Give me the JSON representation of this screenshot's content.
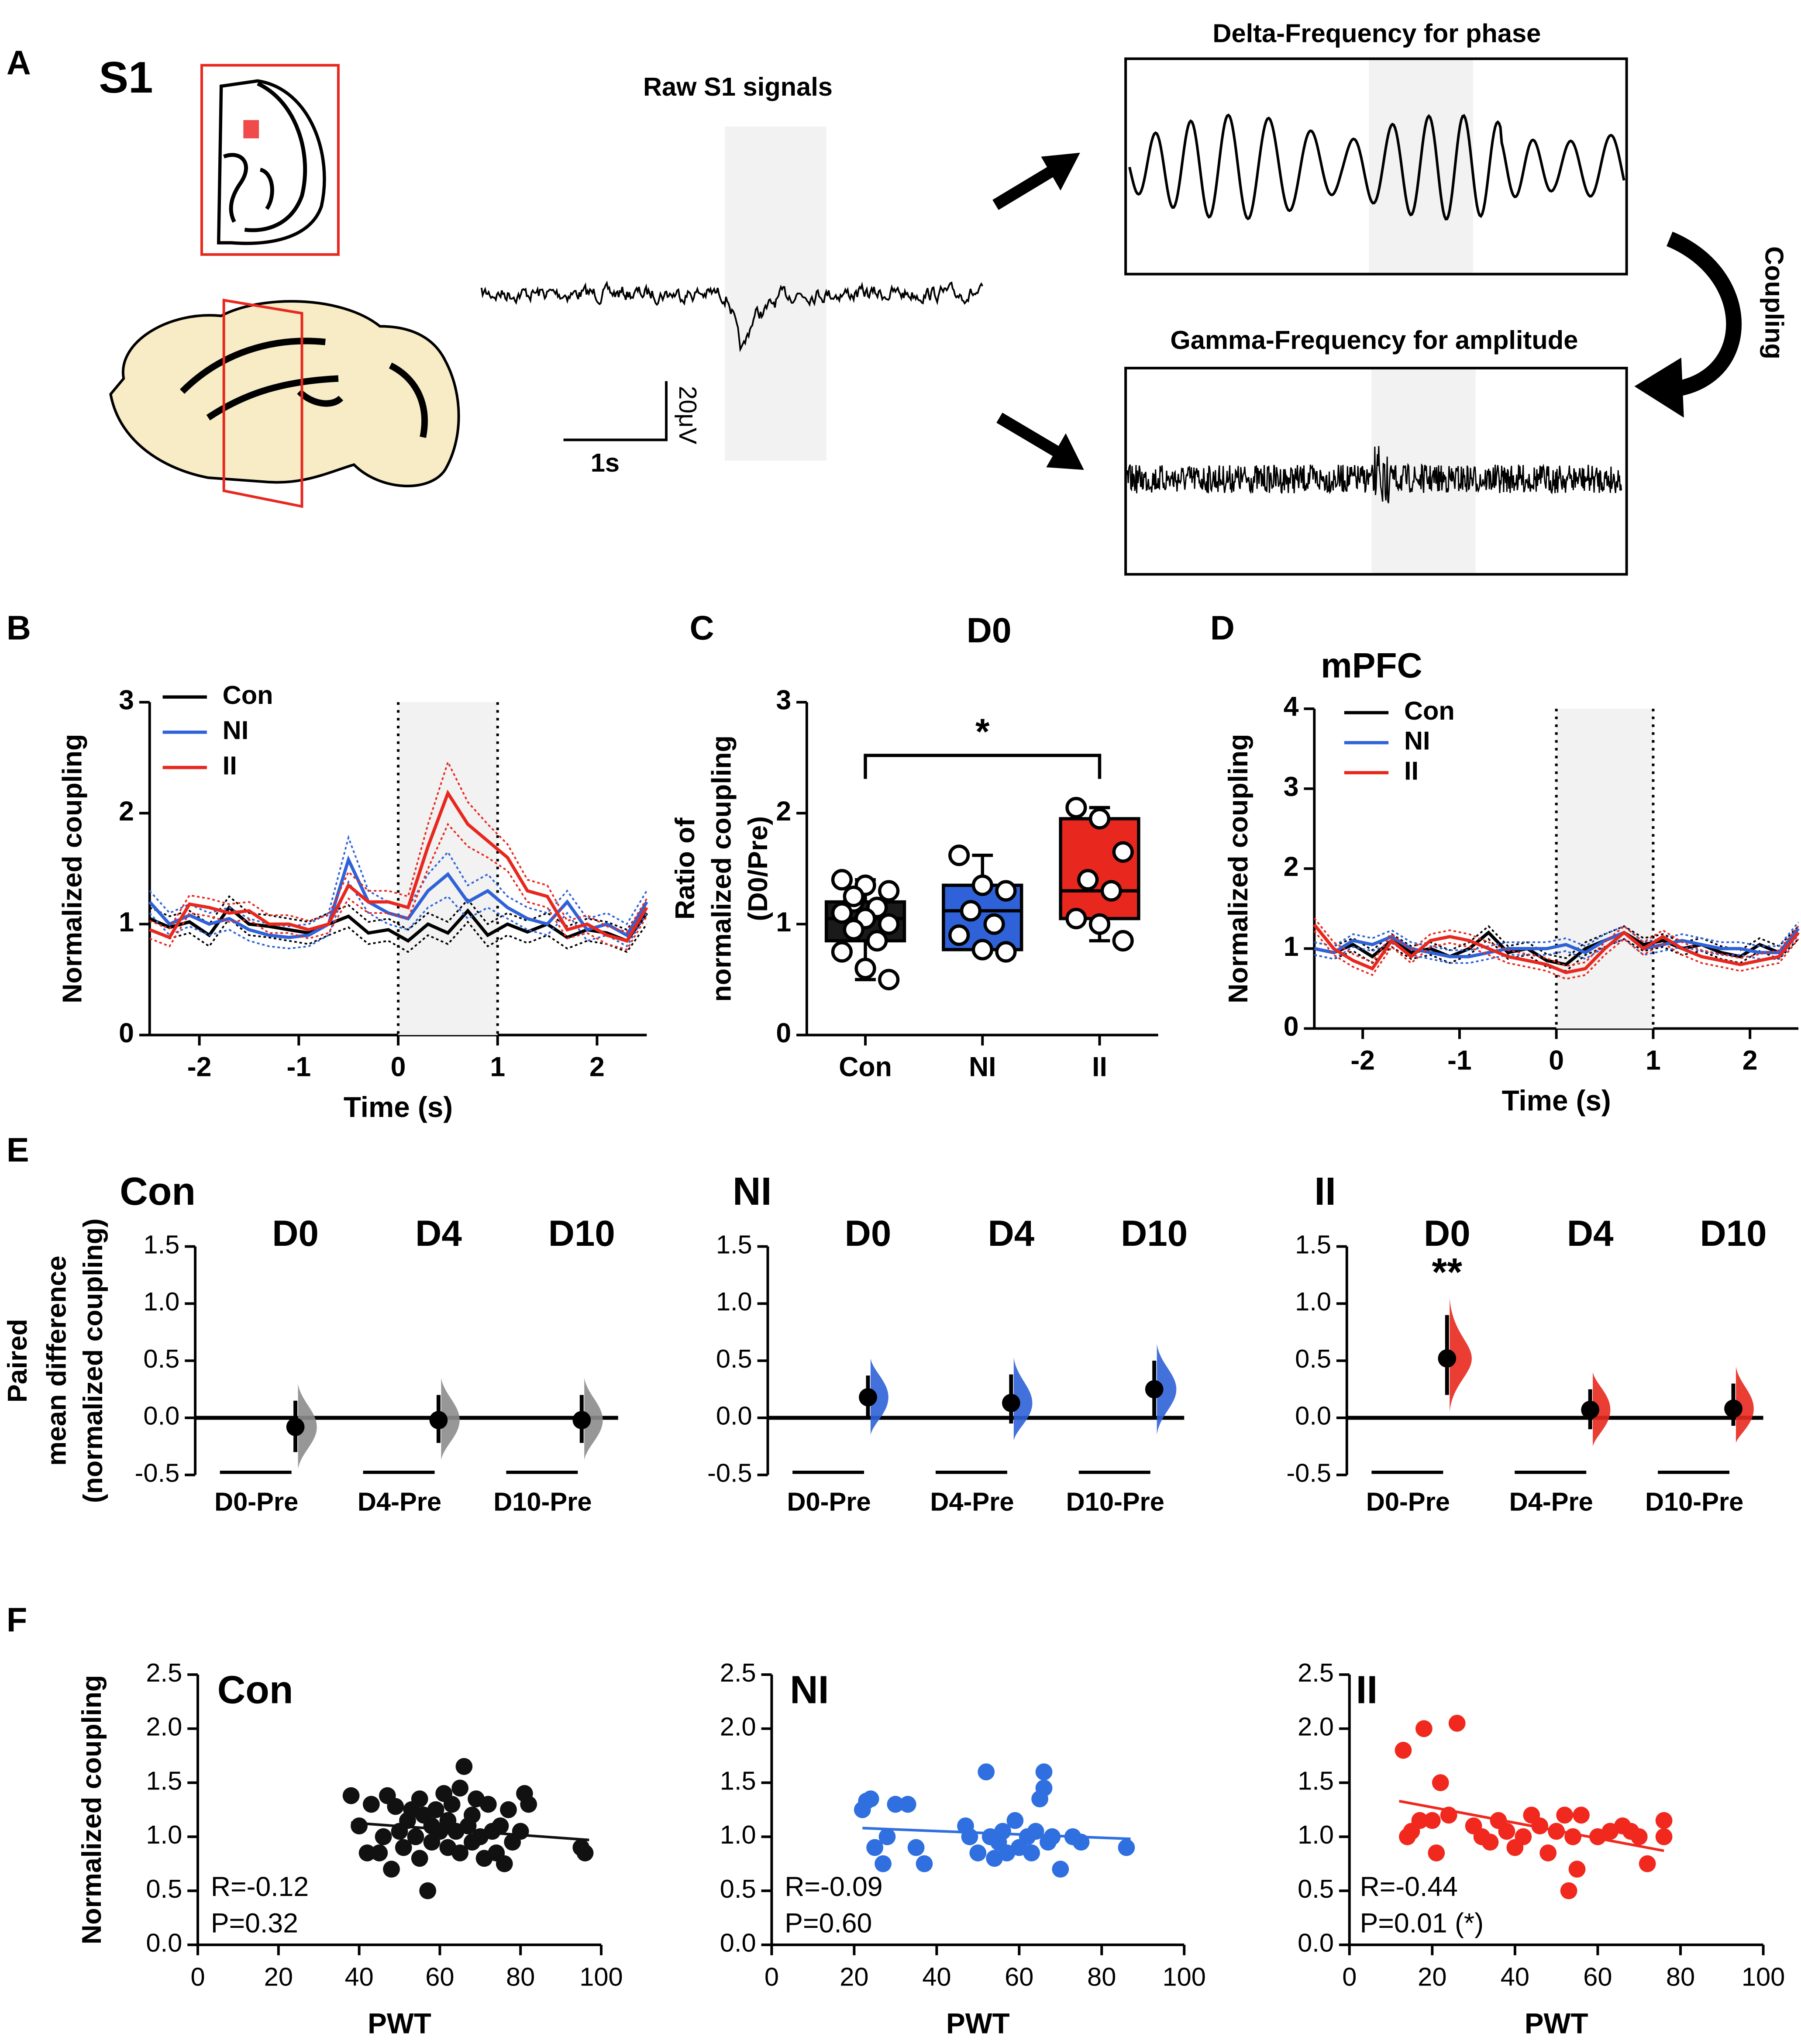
{
  "panel_labels": [
    "A",
    "B",
    "C",
    "D",
    "E",
    "F"
  ],
  "panel_a": {
    "region": "S1",
    "raw_title": "Raw S1 signals",
    "scale_v": "20μV",
    "scale_t": "1s",
    "delta_title": "Delta-Frequency for phase",
    "gamma_title": "Gamma-Frequency for amplitude",
    "coupling_label": "Coupling"
  },
  "chart_data": [
    {
      "type": "line",
      "xlabel": "Time (s)",
      "ylabel": [
        "Normalized coupling"
      ],
      "x": [
        -2.5,
        -2.3,
        -2.1,
        -1.9,
        -1.7,
        -1.5,
        -1.3,
        -1.1,
        -0.9,
        -0.7,
        -0.5,
        -0.3,
        -0.1,
        0.1,
        0.3,
        0.5,
        0.7,
        0.9,
        1.1,
        1.3,
        1.5,
        1.7,
        1.9,
        2.1,
        2.3,
        2.5
      ],
      "xlim": [
        -2.5,
        2.5
      ],
      "xticks": [
        -2,
        -1,
        0,
        1,
        2
      ],
      "ylim": [
        0,
        3
      ],
      "yticks": [
        0,
        1,
        2,
        3
      ],
      "shaded": [
        0,
        1
      ],
      "vlines": [
        0,
        1
      ],
      "legend": "upper left",
      "series": [
        {
          "name": "Con",
          "color": "#000000",
          "values": [
            1.05,
            0.97,
            1.02,
            0.9,
            1.15,
            1.0,
            0.98,
            0.95,
            0.92,
            1.0,
            1.07,
            0.92,
            0.95,
            0.85,
            1.0,
            0.92,
            1.12,
            0.9,
            1.0,
            0.93,
            1.0,
            0.88,
            0.95,
            0.92,
            0.85,
            1.1
          ],
          "errors": [
            0.1,
            0.1,
            0.1,
            0.1,
            0.1,
            0.1,
            0.1,
            0.1,
            0.1,
            0.1,
            0.1,
            0.1,
            0.1,
            0.1,
            0.1,
            0.1,
            0.1,
            0.1,
            0.1,
            0.1,
            0.1,
            0.1,
            0.1,
            0.1,
            0.1,
            0.1
          ]
        },
        {
          "name": "NI",
          "color": "#2f62d8",
          "values": [
            1.2,
            1.0,
            1.08,
            1.0,
            1.05,
            0.95,
            0.9,
            0.88,
            0.9,
            1.0,
            1.58,
            1.2,
            1.1,
            1.05,
            1.3,
            1.45,
            1.2,
            1.3,
            1.15,
            1.05,
            1.0,
            1.2,
            0.95,
            1.0,
            0.9,
            1.2
          ],
          "errors": [
            0.1,
            0.1,
            0.1,
            0.1,
            0.1,
            0.1,
            0.1,
            0.1,
            0.1,
            0.1,
            0.2,
            0.1,
            0.1,
            0.1,
            0.15,
            0.2,
            0.15,
            0.15,
            0.1,
            0.1,
            0.1,
            0.1,
            0.1,
            0.1,
            0.1,
            0.1
          ]
        },
        {
          "name": "II",
          "color": "#e8281e",
          "values": [
            0.95,
            0.88,
            1.18,
            1.15,
            1.1,
            1.12,
            1.0,
            1.0,
            0.95,
            1.0,
            1.35,
            1.2,
            1.2,
            1.15,
            1.7,
            2.18,
            1.9,
            1.75,
            1.6,
            1.3,
            1.25,
            0.95,
            1.0,
            0.9,
            0.85,
            1.15
          ],
          "errors": [
            0.08,
            0.08,
            0.08,
            0.08,
            0.08,
            0.08,
            0.08,
            0.08,
            0.08,
            0.08,
            0.12,
            0.1,
            0.1,
            0.1,
            0.2,
            0.28,
            0.2,
            0.15,
            0.12,
            0.1,
            0.1,
            0.08,
            0.08,
            0.08,
            0.08,
            0.08
          ]
        }
      ]
    },
    {
      "type": "box",
      "title": "D0",
      "ylabel": [
        "Ratio of",
        "normalized coupling",
        "(D0/Pre)"
      ],
      "categories": [
        "Con",
        "NI",
        "II"
      ],
      "ylim": [
        0,
        3
      ],
      "yticks": [
        0,
        1,
        2,
        3
      ],
      "significance": "*",
      "boxes": [
        {
          "min": 0.5,
          "q1": 0.85,
          "median": 1.05,
          "q3": 1.2,
          "max": 1.4,
          "color": "#1a1a1a"
        },
        {
          "min": 0.75,
          "q1": 0.77,
          "median": 1.12,
          "q3": 1.35,
          "max": 1.62,
          "color": "#2f62d8"
        },
        {
          "min": 0.85,
          "q1": 1.05,
          "median": 1.3,
          "q3": 1.95,
          "max": 2.05,
          "color": "#e8281e"
        }
      ],
      "points": [
        [
          1.4,
          1.35,
          1.3,
          1.2,
          1.15,
          1.1,
          1.05,
          1.0,
          0.95,
          0.85,
          0.75,
          0.6,
          0.5,
          1.25
        ],
        [
          1.62,
          1.35,
          1.3,
          1.12,
          1.0,
          0.9,
          0.77,
          0.75
        ],
        [
          2.05,
          1.95,
          1.65,
          1.4,
          1.3,
          1.05,
          1.0,
          0.85
        ]
      ]
    },
    {
      "type": "line",
      "title": "mPFC",
      "xlabel": "Time (s)",
      "ylabel": [
        "Normalized coupling"
      ],
      "x": [
        -2.5,
        -2.3,
        -2.1,
        -1.9,
        -1.7,
        -1.5,
        -1.3,
        -1.1,
        -0.9,
        -0.7,
        -0.5,
        -0.3,
        -0.1,
        0.1,
        0.3,
        0.5,
        0.7,
        0.9,
        1.1,
        1.3,
        1.5,
        1.7,
        1.9,
        2.1,
        2.3,
        2.5
      ],
      "xlim": [
        -2.5,
        2.5
      ],
      "xticks": [
        -2,
        -1,
        0,
        1,
        2
      ],
      "ylim": [
        0,
        4
      ],
      "yticks": [
        0,
        1,
        2,
        3,
        4
      ],
      "shaded": [
        0,
        1
      ],
      "vlines": [
        0,
        1
      ],
      "legend": "upper left",
      "series": [
        {
          "name": "Con",
          "color": "#000000",
          "values": [
            1.0,
            0.95,
            1.05,
            0.9,
            1.1,
            0.95,
            1.0,
            0.9,
            1.0,
            1.2,
            0.95,
            1.0,
            0.85,
            0.8,
            1.0,
            1.1,
            1.2,
            1.05,
            1.1,
            1.0,
            1.05,
            0.95,
            0.9,
            1.05,
            0.95,
            1.2
          ],
          "errors": [
            0.08,
            0.08,
            0.08,
            0.08,
            0.08,
            0.08,
            0.08,
            0.08,
            0.08,
            0.08,
            0.08,
            0.08,
            0.08,
            0.08,
            0.08,
            0.08,
            0.08,
            0.08,
            0.08,
            0.08,
            0.08,
            0.08,
            0.08,
            0.08,
            0.08,
            0.08
          ]
        },
        {
          "name": "NI",
          "color": "#2f62d8",
          "values": [
            1.0,
            0.95,
            1.1,
            1.05,
            1.15,
            1.0,
            0.95,
            0.9,
            0.9,
            0.95,
            1.0,
            1.0,
            1.0,
            1.05,
            0.95,
            1.1,
            1.2,
            1.0,
            1.05,
            1.1,
            1.05,
            1.0,
            1.0,
            0.95,
            0.95,
            1.25
          ],
          "errors": [
            0.08,
            0.08,
            0.08,
            0.08,
            0.08,
            0.08,
            0.08,
            0.08,
            0.08,
            0.08,
            0.08,
            0.08,
            0.08,
            0.08,
            0.08,
            0.08,
            0.08,
            0.08,
            0.08,
            0.08,
            0.08,
            0.08,
            0.08,
            0.08,
            0.08,
            0.08
          ]
        },
        {
          "name": "II",
          "color": "#e8281e",
          "values": [
            1.3,
            1.0,
            0.85,
            0.75,
            1.1,
            0.9,
            1.1,
            1.15,
            1.1,
            1.0,
            0.9,
            0.85,
            0.8,
            0.7,
            0.75,
            1.0,
            1.2,
            1.0,
            1.15,
            1.0,
            0.9,
            0.85,
            0.8,
            0.85,
            0.9,
            1.2
          ],
          "errors": [
            0.08,
            0.08,
            0.08,
            0.08,
            0.08,
            0.08,
            0.08,
            0.08,
            0.08,
            0.08,
            0.08,
            0.08,
            0.08,
            0.08,
            0.08,
            0.08,
            0.08,
            0.08,
            0.08,
            0.08,
            0.08,
            0.08,
            0.08,
            0.08,
            0.08,
            0.08
          ]
        }
      ]
    },
    {
      "type": "estimation",
      "title": "Con",
      "title_color": "#000000",
      "color": "#8c8c8c",
      "ylabel": [
        "Paired",
        "mean difference",
        "(normalized coupling)"
      ],
      "groups": [
        "D0",
        "D4",
        "D10"
      ],
      "categories": [
        "D0-Pre",
        "D4-Pre",
        "D10-Pre"
      ],
      "values": [
        -0.08,
        -0.02,
        -0.02
      ],
      "ci": [
        [
          -0.3,
          0.15
        ],
        [
          -0.22,
          0.2
        ],
        [
          -0.22,
          0.2
        ]
      ],
      "ylim": [
        -0.5,
        1.5
      ],
      "yticks": [
        -0.5,
        {
          "value": 0,
          "label": "0.0"
        },
        0.5,
        {
          "value": 1,
          "label": "1.0"
        },
        1.5
      ]
    },
    {
      "type": "estimation",
      "title": "NI",
      "title_color": "#1f4fe0",
      "color": "#2f62d8",
      "groups": [
        "D0",
        "D4",
        "D10"
      ],
      "categories": [
        "D0-Pre",
        "D4-Pre",
        "D10-Pre"
      ],
      "values": [
        0.18,
        0.13,
        0.25
      ],
      "ci": [
        [
          0.0,
          0.37
        ],
        [
          -0.05,
          0.38
        ],
        [
          0.0,
          0.5
        ]
      ],
      "ylim": [
        -0.5,
        1.5
      ],
      "yticks": [
        -0.5,
        {
          "value": 0,
          "label": "0.0"
        },
        0.5,
        {
          "value": 1,
          "label": "1.0"
        },
        1.5
      ]
    },
    {
      "type": "estimation",
      "title": "II",
      "title_color": "#e8281e",
      "color": "#e8281e",
      "groups": [
        "D0",
        "D4",
        "D10"
      ],
      "categories": [
        "D0-Pre",
        "D4-Pre",
        "D10-Pre"
      ],
      "values": [
        0.52,
        0.07,
        0.08
      ],
      "ci": [
        [
          0.2,
          0.9
        ],
        [
          -0.1,
          0.25
        ],
        [
          -0.07,
          0.3
        ]
      ],
      "significance": [
        "**",
        null,
        null
      ],
      "ylim": [
        -0.5,
        1.5
      ],
      "yticks": [
        -0.5,
        {
          "value": 0,
          "label": "0.0"
        },
        0.5,
        {
          "value": 1,
          "label": "1.0"
        },
        1.5
      ]
    },
    {
      "type": "scatter",
      "title": "Con",
      "title_color": "#000000",
      "color": "#111111",
      "xlabel": "PWT",
      "ylabel": [
        "Normalized coupling"
      ],
      "x": [
        38,
        40,
        42,
        43,
        45,
        46,
        47,
        48,
        49,
        50,
        51,
        52,
        53,
        54,
        55,
        55,
        56,
        57,
        58,
        58,
        59,
        60,
        61,
        62,
        62,
        63,
        64,
        65,
        65,
        66,
        67,
        68,
        68,
        69,
        70,
        71,
        72,
        73,
        74,
        75,
        76,
        77,
        78,
        80,
        81,
        82,
        95,
        96
      ],
      "values": [
        1.38,
        1.1,
        0.85,
        1.3,
        0.85,
        1.0,
        1.38,
        0.7,
        1.28,
        1.05,
        0.9,
        1.15,
        1.25,
        1.0,
        1.35,
        0.8,
        1.2,
        0.5,
        1.1,
        0.95,
        1.25,
        1.05,
        1.4,
        1.15,
        0.9,
        1.3,
        1.05,
        1.45,
        0.85,
        1.65,
        1.1,
        1.2,
        0.95,
        1.35,
        1.0,
        0.8,
        1.3,
        1.05,
        0.85,
        1.1,
        0.75,
        1.25,
        0.95,
        1.05,
        1.4,
        1.3,
        0.9,
        0.85
      ],
      "fit_x": [
        38,
        97
      ],
      "fit_y": [
        1.13,
        0.97
      ],
      "stats": [
        "R=-0.12",
        "P=0.32"
      ],
      "xlim": [
        0,
        100
      ],
      "xticks": [
        0,
        20,
        40,
        60,
        80,
        100
      ],
      "ylim": [
        0,
        2.5
      ],
      "yticks": [
        {
          "value": 0,
          "label": "0.0"
        },
        0.5,
        {
          "value": 1,
          "label": "1.0"
        },
        1.5,
        {
          "value": 2,
          "label": "2.0"
        },
        2.5
      ]
    },
    {
      "type": "scatter",
      "title": "NI",
      "title_color": "#1f4fe0",
      "color": "#2f6fe0",
      "xlabel": "PWT",
      "x": [
        22,
        23,
        24,
        25,
        27,
        28,
        30,
        33,
        35,
        37,
        47,
        48,
        50,
        52,
        53,
        54,
        55,
        56,
        57,
        59,
        60,
        62,
        63,
        64,
        65,
        66,
        66,
        67,
        68,
        70,
        73,
        75,
        86
      ],
      "values": [
        1.25,
        1.33,
        1.35,
        0.9,
        0.75,
        1.0,
        1.3,
        1.3,
        0.9,
        0.75,
        1.1,
        1.0,
        0.85,
        1.6,
        1.0,
        0.8,
        0.95,
        1.05,
        0.85,
        1.15,
        0.9,
        1.0,
        0.85,
        1.05,
        1.35,
        1.45,
        1.6,
        0.95,
        1.0,
        0.7,
        1.0,
        0.95,
        0.9
      ],
      "fit_x": [
        22,
        87
      ],
      "fit_y": [
        1.08,
        0.98
      ],
      "stats": [
        "R=-0.09",
        "P=0.60"
      ],
      "xlim": [
        0,
        100
      ],
      "xticks": [
        0,
        20,
        40,
        60,
        80,
        100
      ],
      "ylim": [
        0,
        2.5
      ],
      "yticks": [
        {
          "value": 0,
          "label": "0.0"
        },
        0.5,
        {
          "value": 1,
          "label": "1.0"
        },
        1.5,
        {
          "value": 2,
          "label": "2.0"
        },
        2.5
      ]
    },
    {
      "type": "scatter",
      "title": "II",
      "title_color": "#e8281e",
      "color": "#f0281e",
      "xlabel": "PWT",
      "x": [
        13,
        14,
        15,
        17,
        18,
        20,
        21,
        22,
        24,
        26,
        30,
        32,
        34,
        36,
        38,
        40,
        42,
        44,
        46,
        48,
        50,
        52,
        53,
        54,
        55,
        56,
        60,
        63,
        66,
        68,
        70,
        72,
        76,
        76
      ],
      "values": [
        1.8,
        1.0,
        1.05,
        1.15,
        2.0,
        1.15,
        0.85,
        1.5,
        1.2,
        2.05,
        1.1,
        1.0,
        0.95,
        1.15,
        1.05,
        0.9,
        1.0,
        1.2,
        1.1,
        0.85,
        1.05,
        1.2,
        0.5,
        1.0,
        0.7,
        1.2,
        1.0,
        1.05,
        1.1,
        1.05,
        1.0,
        0.75,
        1.15,
        1.0
      ],
      "fit_x": [
        12,
        76
      ],
      "fit_y": [
        1.33,
        0.87
      ],
      "stats": [
        "R=-0.44",
        "P=0.01 (*)"
      ],
      "xlim": [
        0,
        100
      ],
      "xticks": [
        0,
        20,
        40,
        60,
        80,
        100
      ],
      "ylim": [
        0,
        2.5
      ],
      "yticks": [
        {
          "value": 0,
          "label": "0.0"
        },
        0.5,
        {
          "value": 1,
          "label": "1.0"
        },
        1.5,
        {
          "value": 2,
          "label": "2.0"
        },
        2.5
      ]
    }
  ]
}
